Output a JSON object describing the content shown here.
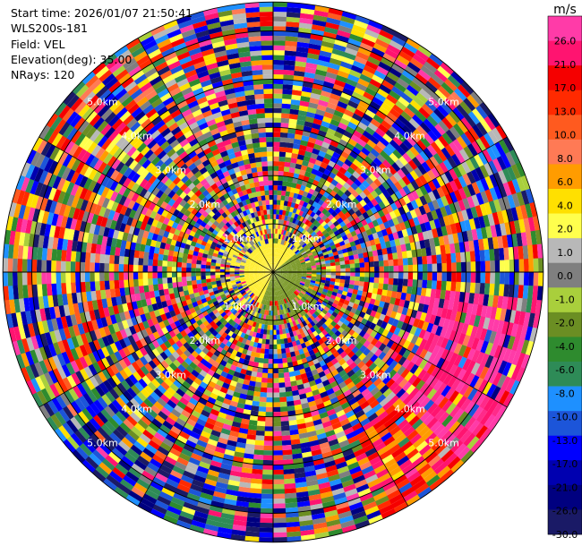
{
  "info": {
    "start_time": "Start time: 2026/01/07 21:50:41",
    "instrument": "WLS200s-181",
    "field": "Field: VEL",
    "elevation": "Elevation(deg): 35.00",
    "nrays": "NRays: 120"
  },
  "chart_data": {
    "type": "heatmap",
    "projection": "polar-ppi",
    "field": "VEL",
    "units": "m/s",
    "range_rings_km": [
      1.0,
      2.0,
      3.0,
      4.0,
      5.0
    ],
    "ring_labels": [
      "1.0km",
      "2.0km",
      "3.0km",
      "4.0km",
      "5.0km"
    ],
    "max_range_km": 5.6,
    "n_rays": 120,
    "n_gates": 56,
    "colorbar": {
      "title": "m/s",
      "ticks": [
        "26.0",
        "21.0",
        "17.0",
        "13.0",
        "10.0",
        "8.0",
        "6.0",
        "4.0",
        "2.0",
        "1.0",
        "0.0",
        "-1.0",
        "-2.0",
        "-4.0",
        "-6.0",
        "-8.0",
        "-10.0",
        "-13.0",
        "-17.0",
        "-21.0",
        "-26.0",
        "-30.0"
      ],
      "colors": [
        "#ff3ba8",
        "#ff1470",
        "#f50000",
        "#ff2a00",
        "#ff5a1f",
        "#ff7a55",
        "#ff9c00",
        "#ffe000",
        "#ffff4d",
        "#b8b8b8",
        "#7f7f7f",
        "#a9cf3c",
        "#6b8e23",
        "#2e8b2e",
        "#2e8b57",
        "#1e90ff",
        "#1c55d9",
        "#0000ff",
        "#0000b0",
        "#000080",
        "#1a1a66"
      ]
    },
    "near_field": {
      "inbound_color": "#ffee33",
      "outbound_color": "#7c9a2a",
      "inbound_velocity_ms": 3.0,
      "outbound_velocity_ms": -2.0
    },
    "edge_band": {
      "description_free": true,
      "max_velocity_ms": 25.0
    }
  }
}
